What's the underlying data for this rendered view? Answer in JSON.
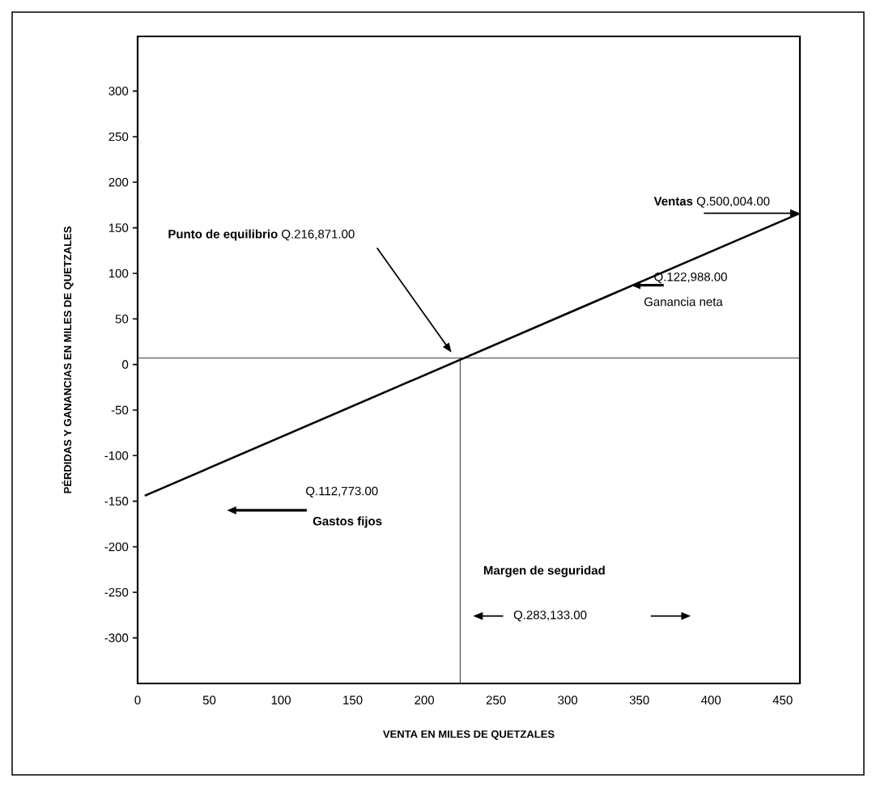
{
  "chart_data": {
    "type": "line",
    "xlabel": "VENTA EN MILES DE QUETZALES",
    "ylabel": "PÉRDIDAS Y GANANCIAS EN MILES DE QUETZALES",
    "xlim": [
      0,
      462
    ],
    "ylim": [
      -350,
      360
    ],
    "xticks": [
      0,
      50,
      100,
      150,
      200,
      250,
      300,
      350,
      400,
      450
    ],
    "yticks": [
      -300,
      -250,
      -200,
      -150,
      -100,
      -50,
      0,
      50,
      100,
      150,
      200,
      250,
      300
    ],
    "series": [
      {
        "x": [
          5,
          462
        ],
        "values": [
          -144,
          166
        ],
        "color": "#000000"
      }
    ],
    "ref_lines": [
      {
        "axis": "x",
        "value": 225,
        "color": "#000000"
      },
      {
        "axis": "y",
        "value": 7,
        "color": "#000000"
      }
    ],
    "annotations": [
      "**Punto de equilibrio** Q.216,871.00",
      {
        "text": "**Ventas** Q.500,004.00",
        "x": 462,
        "y": 166
      },
      "Q.122,988.00",
      "Ganancia neta",
      "Q.112,773.00",
      "**Gastos fijos**",
      "**Margen de seguridad**",
      "Q.283,133.00"
    ],
    "grid": false
  }
}
